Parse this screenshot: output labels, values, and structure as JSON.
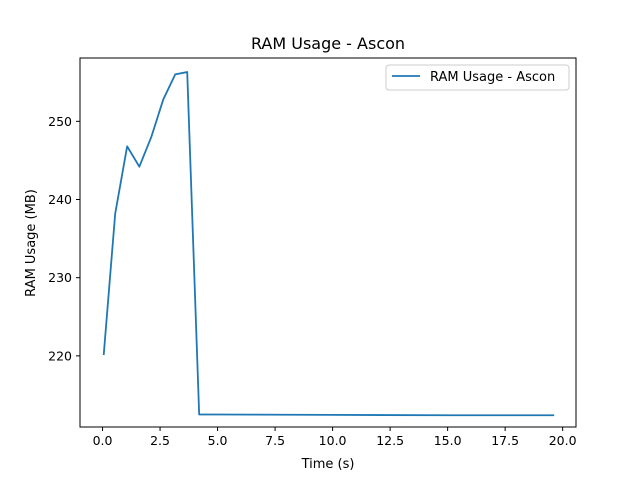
{
  "chart_data": {
    "type": "line",
    "title": "RAM Usage - Ascon",
    "xlabel": "Time (s)",
    "ylabel": "RAM Usage (MB)",
    "xlim": [
      -0.98,
      20.58
    ],
    "ylim": [
      210.9,
      258.1
    ],
    "xticks": [
      0.0,
      2.5,
      5.0,
      7.5,
      10.0,
      12.5,
      15.0,
      17.5,
      20.0
    ],
    "xtick_labels": [
      "0.0",
      "2.5",
      "5.0",
      "7.5",
      "10.0",
      "12.5",
      "15.0",
      "17.5",
      "20.0"
    ],
    "yticks": [
      220,
      230,
      240,
      250
    ],
    "ytick_labels": [
      "220",
      "230",
      "240",
      "250"
    ],
    "grid": false,
    "legend": "top-right",
    "series": [
      {
        "name": "RAM Usage - Ascon",
        "color": "#1f77b4",
        "x": [
          0.05,
          0.55,
          1.07,
          1.6,
          2.12,
          2.64,
          3.16,
          3.68,
          4.2,
          5.0,
          10.0,
          15.0,
          19.63
        ],
        "y": [
          220.1,
          238.2,
          246.8,
          244.2,
          248.0,
          252.8,
          256.0,
          256.3,
          212.5,
          212.5,
          212.45,
          212.4,
          212.4
        ]
      }
    ]
  }
}
